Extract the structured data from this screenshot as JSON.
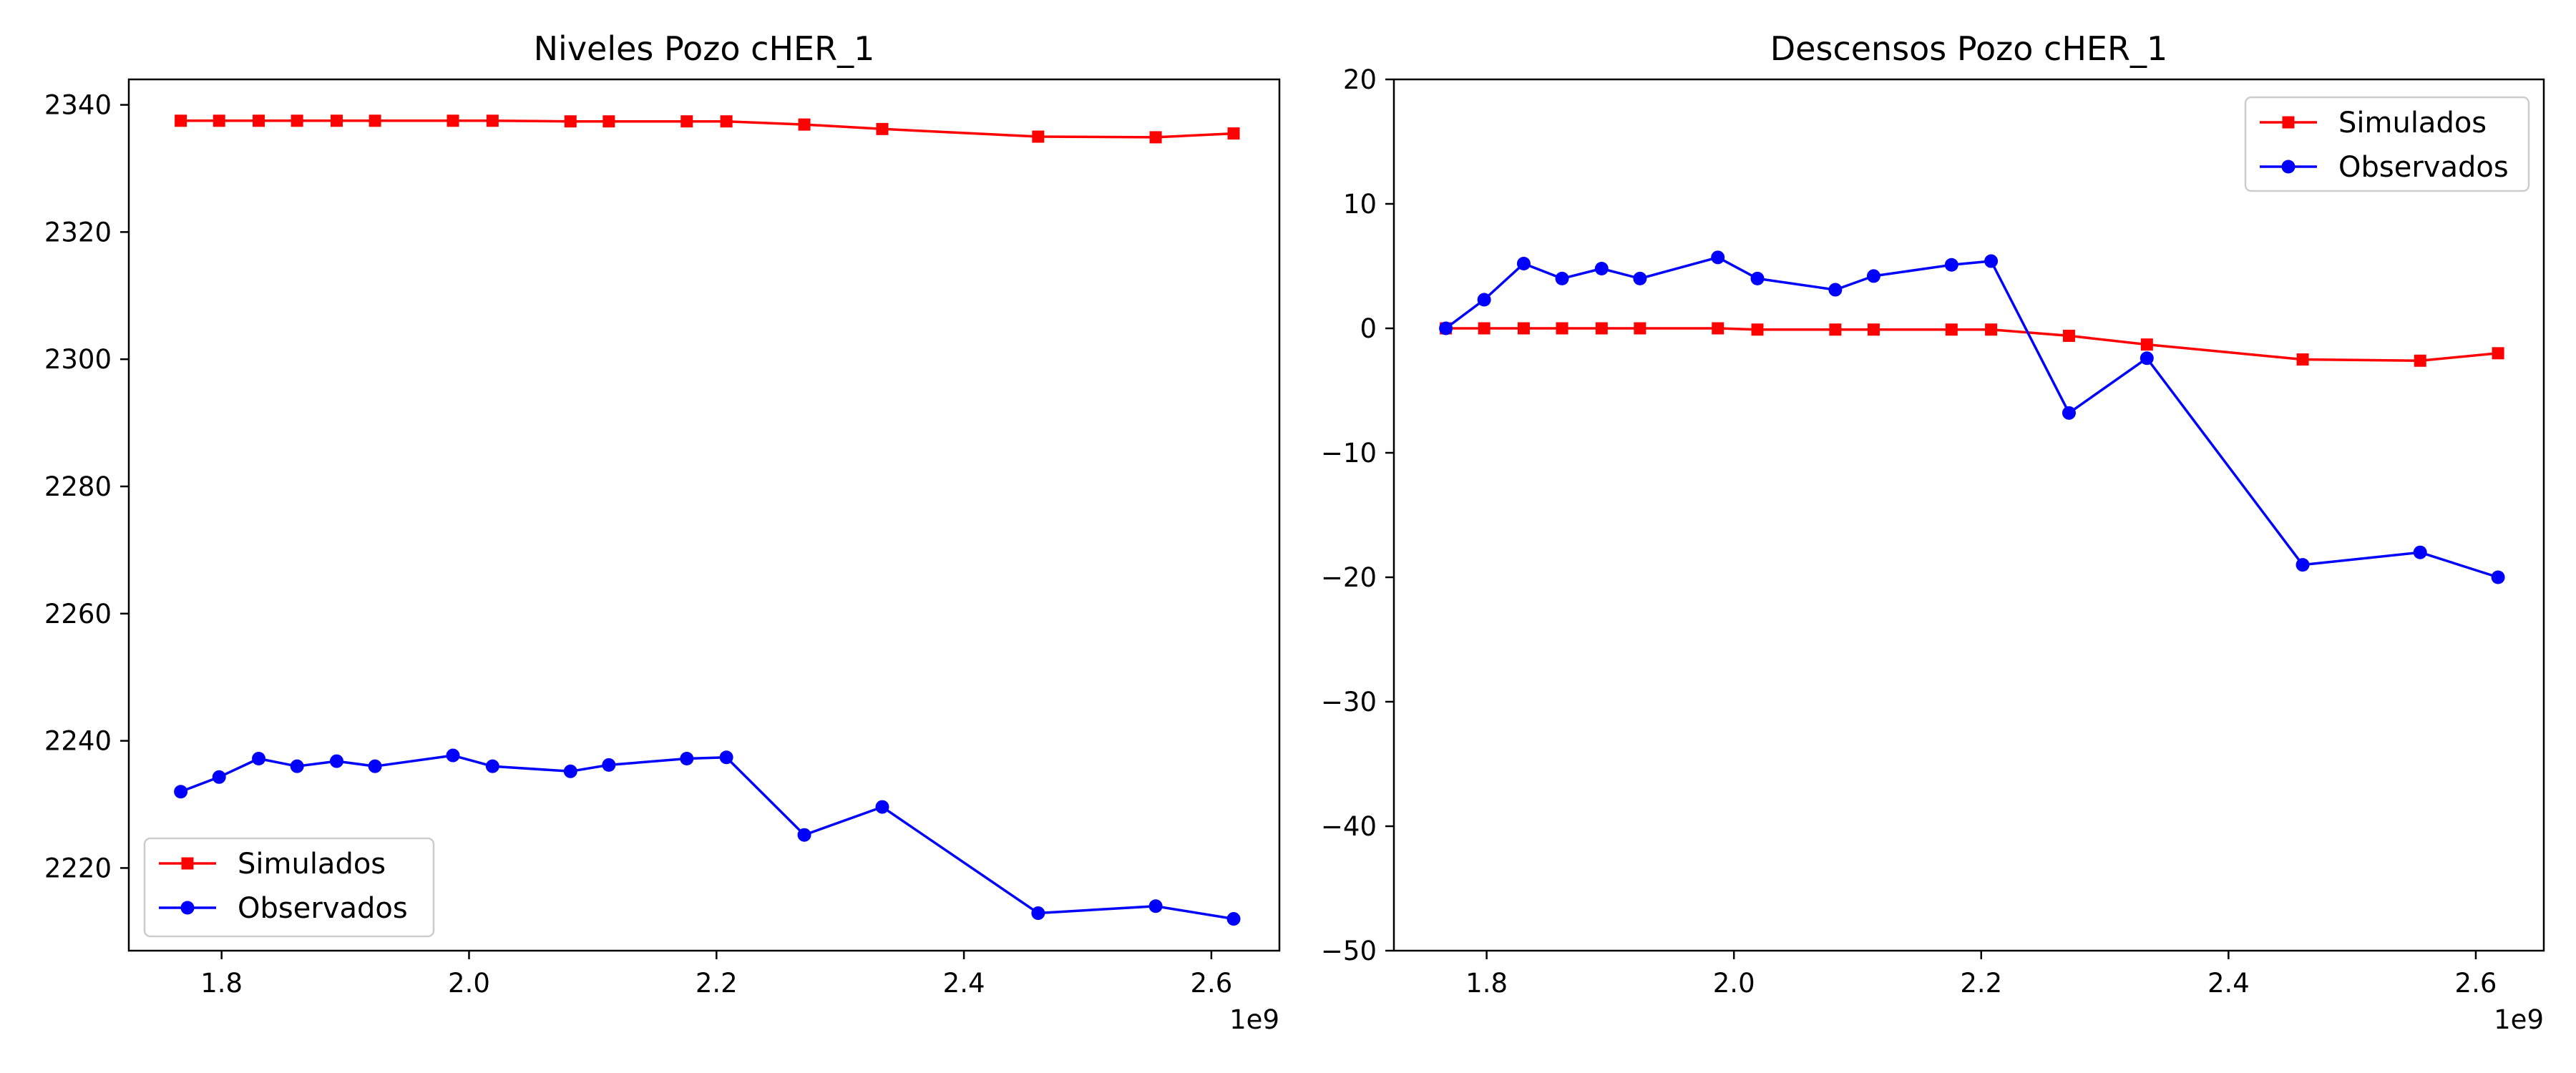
{
  "colors": {
    "simulados": "#ff0000",
    "observados": "#0000ff"
  },
  "chart_data": [
    {
      "type": "line",
      "title": "Niveles Pozo cHER_1",
      "xlabel": "",
      "ylabel": "",
      "x_offset_label": "1e9",
      "xlim": [
        1.725,
        2.655
      ],
      "ylim": [
        2207,
        2344
      ],
      "x_ticks": [
        1.8,
        2.0,
        2.2,
        2.4,
        2.6
      ],
      "x_tick_labels": [
        "1.8",
        "2.0",
        "2.2",
        "2.4",
        "2.6"
      ],
      "y_ticks": [
        2220,
        2240,
        2260,
        2280,
        2300,
        2320,
        2340
      ],
      "y_tick_labels": [
        "2220",
        "2240",
        "2260",
        "2280",
        "2300",
        "2320",
        "2340"
      ],
      "grid": false,
      "legend_position": "lower-left",
      "x": [
        1.767,
        1.798,
        1.83,
        1.861,
        1.893,
        1.924,
        1.987,
        2.019,
        2.082,
        2.113,
        2.176,
        2.208,
        2.271,
        2.334,
        2.46,
        2.555,
        2.618
      ],
      "series": [
        {
          "name": "Simulados",
          "color": "#ff0000",
          "marker": "square",
          "values": [
            2337.5,
            2337.5,
            2337.5,
            2337.5,
            2337.5,
            2337.5,
            2337.5,
            2337.5,
            2337.4,
            2337.4,
            2337.4,
            2337.4,
            2336.9,
            2336.2,
            2335.0,
            2334.9,
            2335.5
          ]
        },
        {
          "name": "Observados",
          "color": "#0000ff",
          "marker": "circle",
          "values": [
            2232.0,
            2234.3,
            2237.2,
            2236.0,
            2236.8,
            2236.0,
            2237.7,
            2236.0,
            2235.2,
            2236.2,
            2237.2,
            2237.4,
            2225.2,
            2229.6,
            2212.9,
            2214.0,
            2212.0
          ]
        }
      ]
    },
    {
      "type": "line",
      "title": "Descensos Pozo cHER_1",
      "xlabel": "",
      "ylabel": "",
      "x_offset_label": "1e9",
      "xlim": [
        1.725,
        2.655
      ],
      "ylim": [
        -50,
        20
      ],
      "x_ticks": [
        1.8,
        2.0,
        2.2,
        2.4,
        2.6
      ],
      "x_tick_labels": [
        "1.8",
        "2.0",
        "2.2",
        "2.4",
        "2.6"
      ],
      "y_ticks": [
        -50,
        -40,
        -30,
        -20,
        -10,
        0,
        10,
        20
      ],
      "y_tick_labels": [
        "−50",
        "−40",
        "−30",
        "−20",
        "−10",
        "0",
        "10",
        "20"
      ],
      "grid": false,
      "legend_position": "upper-right",
      "x": [
        1.767,
        1.798,
        1.83,
        1.861,
        1.893,
        1.924,
        1.987,
        2.019,
        2.082,
        2.113,
        2.176,
        2.208,
        2.271,
        2.334,
        2.46,
        2.555,
        2.618
      ],
      "series": [
        {
          "name": "Simulados",
          "color": "#ff0000",
          "marker": "square",
          "values": [
            0.0,
            0.0,
            0.0,
            0.0,
            0.0,
            0.0,
            0.0,
            -0.1,
            -0.1,
            -0.1,
            -0.1,
            -0.1,
            -0.6,
            -1.3,
            -2.5,
            -2.6,
            -2.0
          ]
        },
        {
          "name": "Observados",
          "color": "#0000ff",
          "marker": "circle",
          "values": [
            0.0,
            2.3,
            5.2,
            4.0,
            4.8,
            4.0,
            5.7,
            4.0,
            3.1,
            4.2,
            5.1,
            5.4,
            -6.8,
            -2.4,
            -19.0,
            -18.0,
            -20.0
          ]
        }
      ]
    }
  ]
}
